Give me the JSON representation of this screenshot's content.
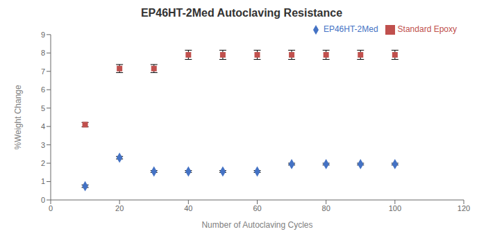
{
  "chart_data": {
    "type": "scatter",
    "title": "EP46HT-2Med Autoclaving Resistance",
    "xlabel": "Number of Autoclaving Cycles",
    "ylabel": "%Weight Change",
    "xlim": [
      0,
      120
    ],
    "ylim": [
      0,
      9
    ],
    "xticks": [
      0,
      20,
      40,
      60,
      80,
      100,
      120
    ],
    "yticks": [
      0,
      1,
      2,
      3,
      4,
      5,
      6,
      7,
      8,
      9
    ],
    "grid": false,
    "legend": "upper right",
    "x": [
      10,
      20,
      30,
      40,
      50,
      60,
      70,
      80,
      90,
      100
    ],
    "series": [
      {
        "name": "EP46HT-2Med",
        "color": "#4472C4",
        "marker": "diamond",
        "values": [
          0.75,
          2.3,
          1.55,
          1.55,
          1.55,
          1.55,
          1.95,
          1.95,
          1.95,
          1.95
        ],
        "error": [
          0.07,
          0.07,
          0.05,
          0.05,
          0.05,
          0.05,
          0.05,
          0.05,
          0.05,
          0.05
        ]
      },
      {
        "name": "Standard Epoxy",
        "color": "#C0504D",
        "marker": "square",
        "values": [
          4.1,
          7.15,
          7.15,
          7.9,
          7.9,
          7.9,
          7.9,
          7.9,
          7.9,
          7.9
        ],
        "error": [
          0.12,
          0.22,
          0.22,
          0.25,
          0.25,
          0.25,
          0.25,
          0.25,
          0.25,
          0.25
        ]
      }
    ]
  }
}
